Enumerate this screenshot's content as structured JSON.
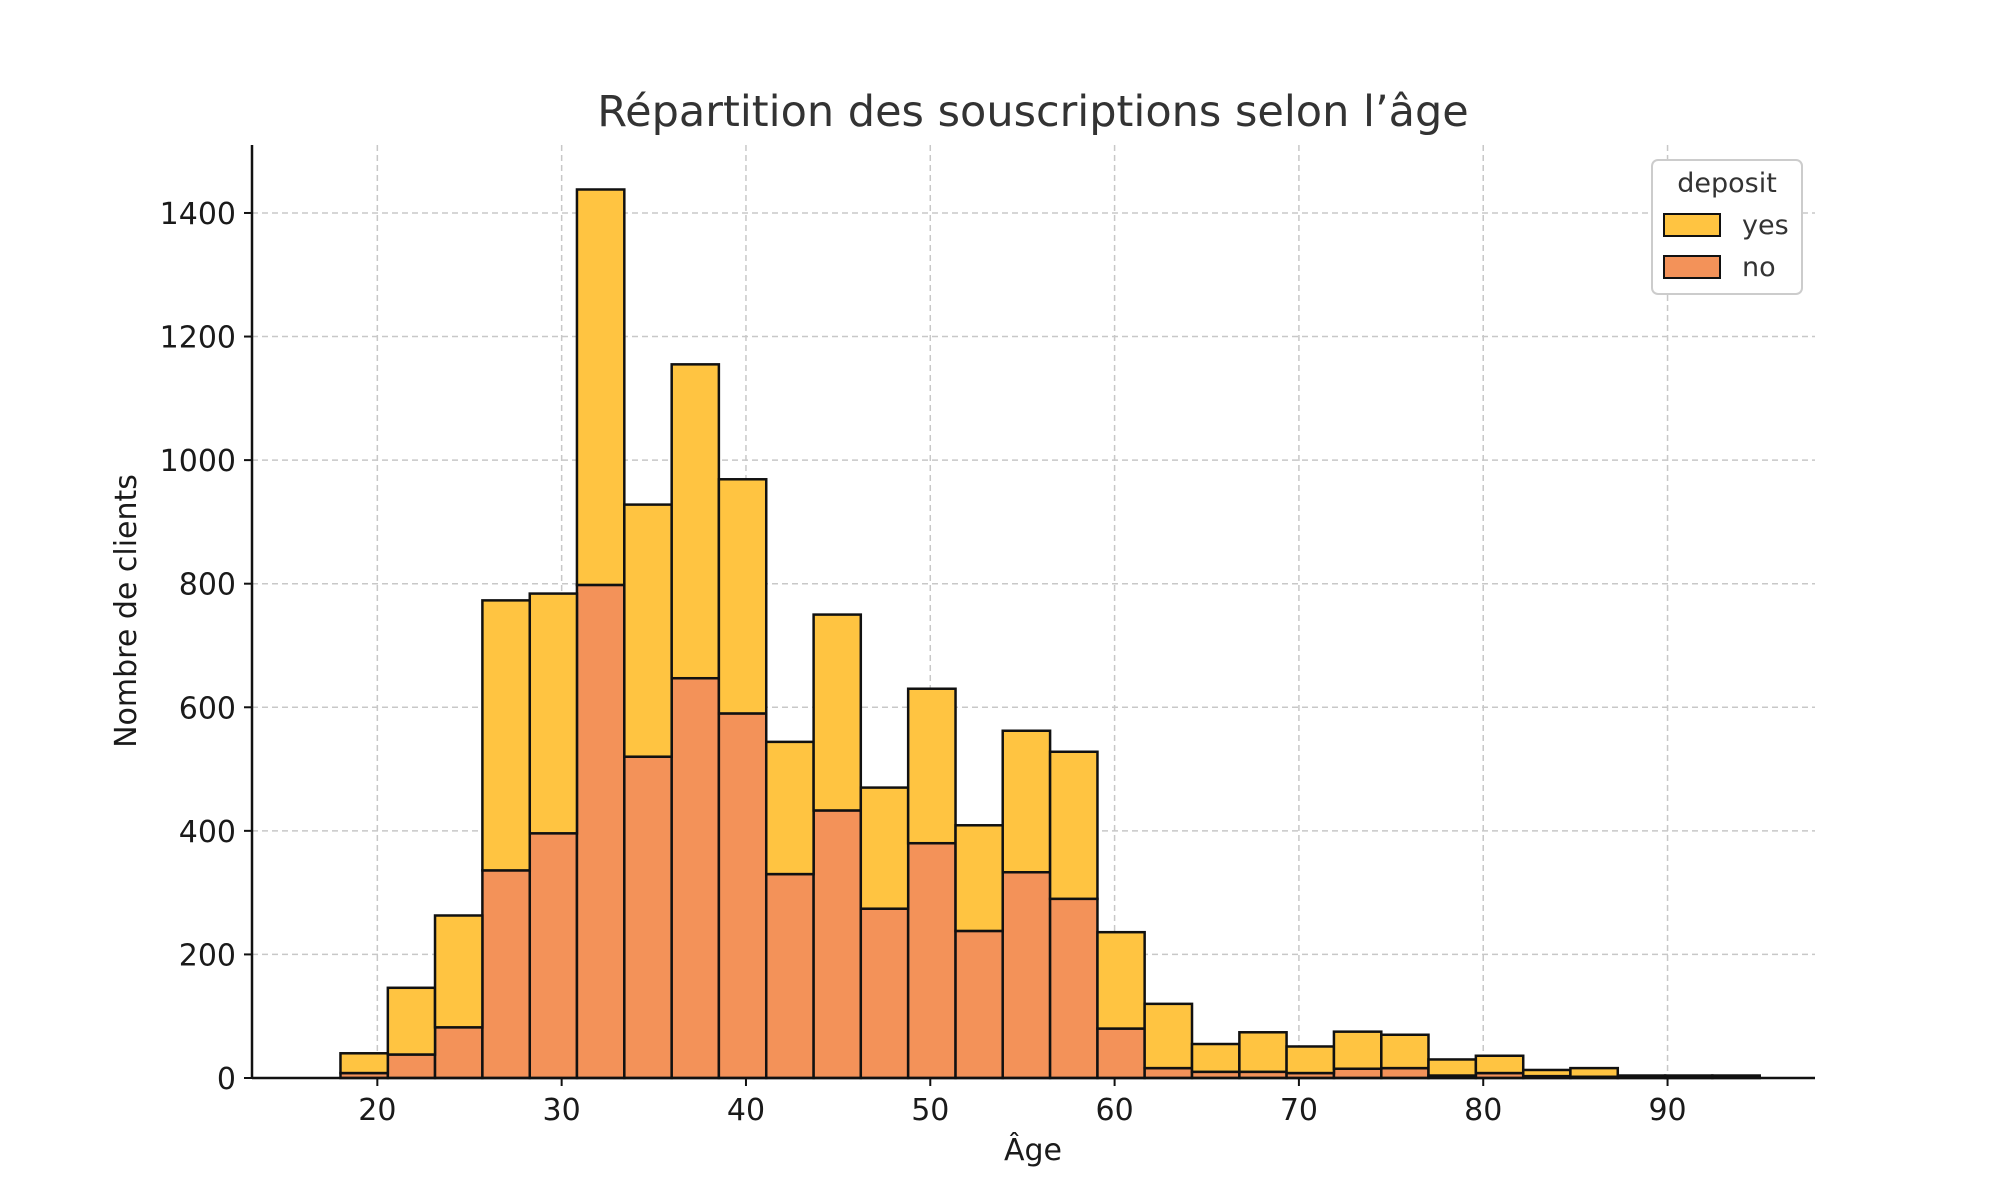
{
  "chart_data": {
    "type": "bar",
    "stacked": true,
    "title": "Répartition des souscriptions selon l’âge",
    "xlabel": "Âge",
    "ylabel": "Nombre de clients",
    "xlim": [
      13.2,
      98.0
    ],
    "ylim": [
      0,
      1510
    ],
    "xticks": [
      20,
      30,
      40,
      50,
      60,
      70,
      80,
      90
    ],
    "yticks": [
      0,
      200,
      400,
      600,
      800,
      1000,
      1200,
      1400
    ],
    "grid": true,
    "legend": {
      "title": "deposit",
      "position": "top-right"
    },
    "bin_edges": [
      18,
      20.57,
      23.13,
      25.7,
      28.27,
      30.83,
      33.4,
      35.97,
      38.53,
      41.1,
      43.67,
      46.23,
      48.8,
      51.37,
      53.93,
      56.5,
      59.07,
      61.63,
      64.2,
      66.77,
      69.33,
      71.9,
      74.47,
      77.03,
      79.6,
      82.17,
      84.73,
      87.3,
      89.87,
      92.43,
      95
    ],
    "series": [
      {
        "name": "no",
        "color": "#f39259",
        "values": [
          8,
          38,
          82,
          336,
          396,
          798,
          520,
          647,
          590,
          330,
          433,
          274,
          380,
          238,
          333,
          290,
          80,
          16,
          10,
          10,
          8,
          15,
          16,
          4,
          8,
          3,
          2,
          1,
          1,
          1
        ]
      },
      {
        "name": "yes",
        "color": "#ffc441",
        "values": [
          32,
          108,
          181,
          437,
          388,
          640,
          408,
          508,
          379,
          214,
          317,
          196,
          250,
          171,
          229,
          238,
          156,
          104,
          45,
          64,
          43,
          60,
          54,
          26,
          28,
          10,
          14,
          3,
          3,
          3
        ]
      }
    ]
  }
}
